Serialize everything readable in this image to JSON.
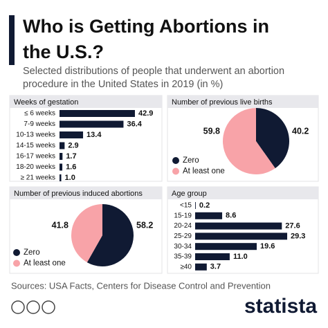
{
  "header": {
    "title": "Who is Getting Abortions in the U.S.?",
    "subtitle": "Selected distributions of people that underwent an abortion procedure in the United States in 2019 (in %)"
  },
  "chart_data": [
    {
      "type": "bar",
      "title": "Weeks of gestation",
      "categories": [
        "≤ 6 weeks",
        "7-9 weeks",
        "10-13 weeks",
        "14-15 weeks",
        "16-17 weeks",
        "18-20 weeks",
        "≥ 21 weeks"
      ],
      "values": [
        42.9,
        36.4,
        13.4,
        2.9,
        1.7,
        1.6,
        1.0
      ],
      "value_labels": [
        "42.9",
        "36.4",
        "13.4",
        "2.9",
        "1.7",
        "1.6",
        "1.0"
      ],
      "color": "#101a33"
    },
    {
      "type": "pie",
      "title": "Number of previous live births",
      "categories": [
        "Zero",
        "At least one"
      ],
      "values": [
        40.2,
        59.8
      ],
      "colors": [
        "#101a33",
        "#f8a3a8"
      ]
    },
    {
      "type": "pie",
      "title": "Number of previous induced abortions",
      "categories": [
        "Zero",
        "At least one"
      ],
      "values": [
        58.2,
        41.8
      ],
      "colors": [
        "#101a33",
        "#f8a3a8"
      ]
    },
    {
      "type": "bar",
      "title": "Age group",
      "categories": [
        "<15",
        "15-19",
        "20-24",
        "25-29",
        "30-34",
        "35-39",
        "≥40"
      ],
      "values": [
        0.2,
        8.6,
        27.6,
        29.3,
        19.6,
        11.0,
        3.7
      ],
      "value_labels": [
        "0.2",
        "8.6",
        "27.6",
        "29.3",
        "19.6",
        "11.0",
        "3.7"
      ],
      "color": "#101a33"
    }
  ],
  "footer": {
    "source": "Sources: USA Facts, Centers for Disease Control and Prevention",
    "brand": "statista"
  }
}
